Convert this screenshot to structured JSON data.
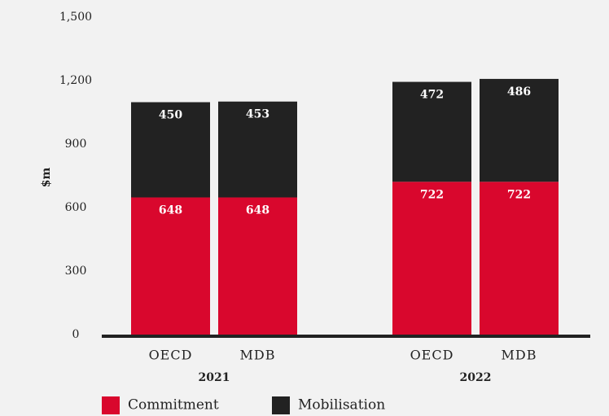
{
  "chart_data": {
    "type": "bar",
    "stacked": true,
    "ylabel": "$m",
    "groups": [
      {
        "name": "2021",
        "categories": [
          "OECD",
          "MDB"
        ]
      },
      {
        "name": "2022",
        "categories": [
          "OECD",
          "MDB"
        ]
      }
    ],
    "series": [
      {
        "name": "Commitment",
        "color": "#d9072d",
        "values": [
          648,
          648,
          722,
          722
        ]
      },
      {
        "name": "Mobilisation",
        "color": "#222222",
        "values": [
          450,
          453,
          472,
          486
        ]
      }
    ],
    "ylim": [
      0,
      1500
    ],
    "yticks": [
      0,
      300,
      600,
      900,
      {
        "value": 1200,
        "label": "1,200"
      },
      {
        "value": 1500,
        "label": "1,500"
      }
    ],
    "grid": false,
    "legend": "bottom"
  }
}
